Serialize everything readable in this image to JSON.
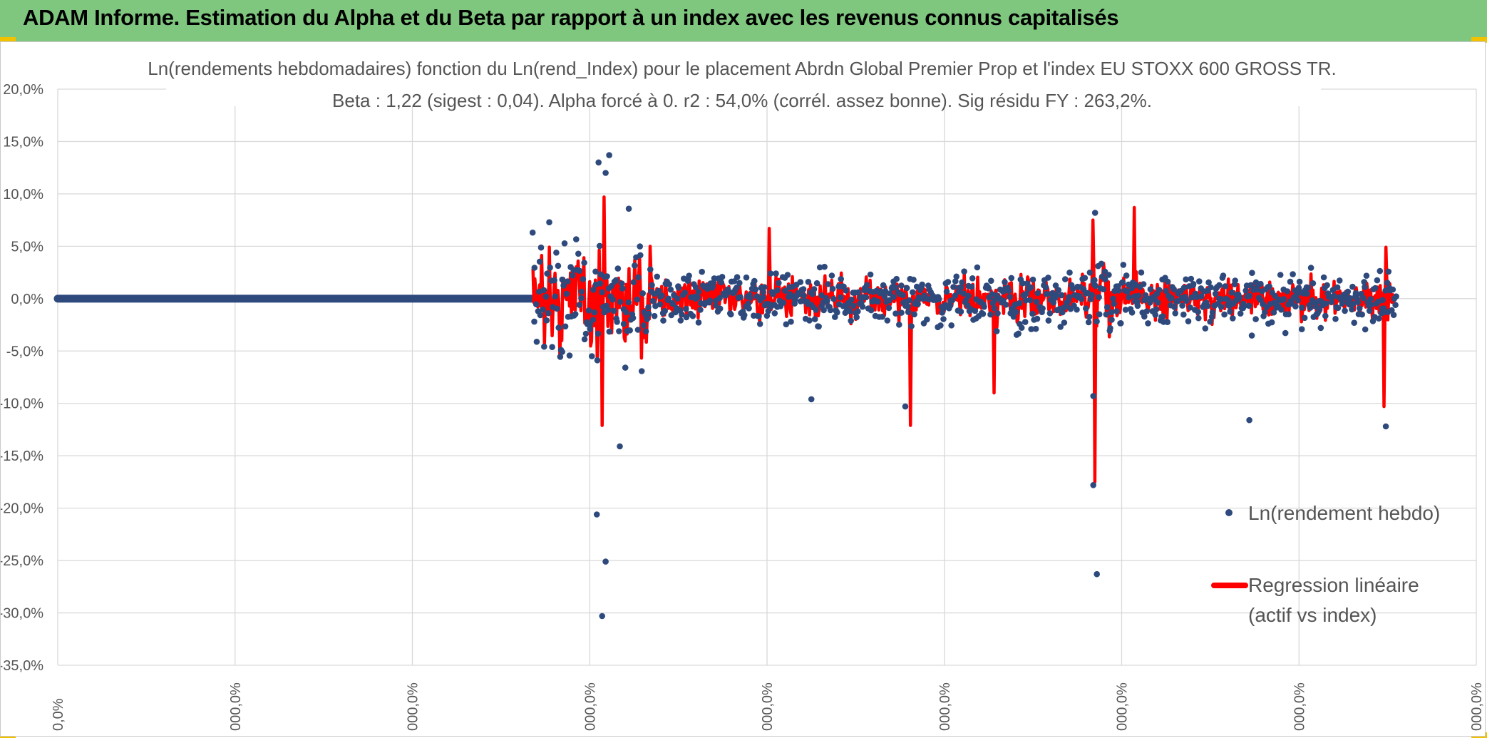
{
  "header": {
    "title": "ADAM Informe. Estimation du Alpha et du Beta par rapport à un index avec les revenus connus capitalisés"
  },
  "colors": {
    "header_bg": "#7fc67f",
    "corner_marker": "#f2c200",
    "points": "#2e4a7d",
    "regression": "#ff0000",
    "grid": "#d9d9d9"
  },
  "chart_data": {
    "type": "scatter",
    "title_lines": [
      "Ln(rendements hebdomadaires) fonction du Ln(rend_Index) pour le placement Abrdn Global Premier Prop et l'index EU STOXX 600 GROSS TR.",
      "Beta : 1,22 (sigest : 0,04). Alpha forcé à 0. r2 : 54,0% (corrél. assez bonne). Sig résidu FY : 263,2%."
    ],
    "ylim": [
      -35,
      20
    ],
    "y_ticks": [
      20,
      15,
      10,
      5,
      0,
      -5,
      -10,
      -15,
      -20,
      -25,
      -30,
      -35
    ],
    "y_tick_labels": [
      "20,0%",
      "15,0%",
      "10,0%",
      "5,0%",
      "0,0%",
      "-5,0%",
      "-10,0%",
      "-15,0%",
      "-20,0%",
      "-25,0%",
      "-30,0%",
      "-35,0%"
    ],
    "x_ticks": [
      0,
      1,
      2,
      3,
      4,
      5,
      6,
      7,
      8
    ],
    "x_tick_labels": [
      "0,0%",
      "000,0%",
      "000,0%",
      "000,0%",
      "000,0%",
      "000,0%",
      "000,0%",
      "000,0%",
      "000,0%"
    ],
    "xlim": [
      0,
      8
    ],
    "zero_segment": [
      0,
      2.68
    ],
    "cluster_range": [
      2.68,
      7.55
    ],
    "beta": 1.22,
    "notable_points": [
      {
        "x": 3.05,
        "y": 13.0
      },
      {
        "x": 3.09,
        "y": 12.0
      },
      {
        "x": 3.11,
        "y": 13.7
      },
      {
        "x": 3.04,
        "y": -20.6
      },
      {
        "x": 3.07,
        "y": -30.3
      },
      {
        "x": 3.09,
        "y": -25.1
      },
      {
        "x": 3.17,
        "y": -14.1
      },
      {
        "x": 4.78,
        "y": -10.3
      },
      {
        "x": 5.85,
        "y": 8.2
      },
      {
        "x": 5.84,
        "y": -17.8
      },
      {
        "x": 5.86,
        "y": -26.3
      },
      {
        "x": 5.84,
        "y": -9.3
      },
      {
        "x": 7.49,
        "y": -12.2
      },
      {
        "x": 6.72,
        "y": -11.6
      },
      {
        "x": 4.25,
        "y": -9.6
      }
    ],
    "regression_spikes": [
      {
        "x": 3.08,
        "y": 9.7
      },
      {
        "x": 3.07,
        "y": -12.1
      },
      {
        "x": 4.81,
        "y": -12.1
      },
      {
        "x": 5.84,
        "y": 7.5
      },
      {
        "x": 5.85,
        "y": -17.5
      },
      {
        "x": 6.07,
        "y": 8.7
      },
      {
        "x": 7.49,
        "y": 4.9
      },
      {
        "x": 7.48,
        "y": -10.3
      },
      {
        "x": 4.01,
        "y": 6.7
      },
      {
        "x": 5.28,
        "y": -9.0
      }
    ],
    "legend": [
      {
        "label": "Ln(rendement hebdo)",
        "kind": "marker"
      },
      {
        "label_lines": [
          "Regression linéaire",
          "(actif vs index)"
        ],
        "kind": "line"
      }
    ]
  }
}
